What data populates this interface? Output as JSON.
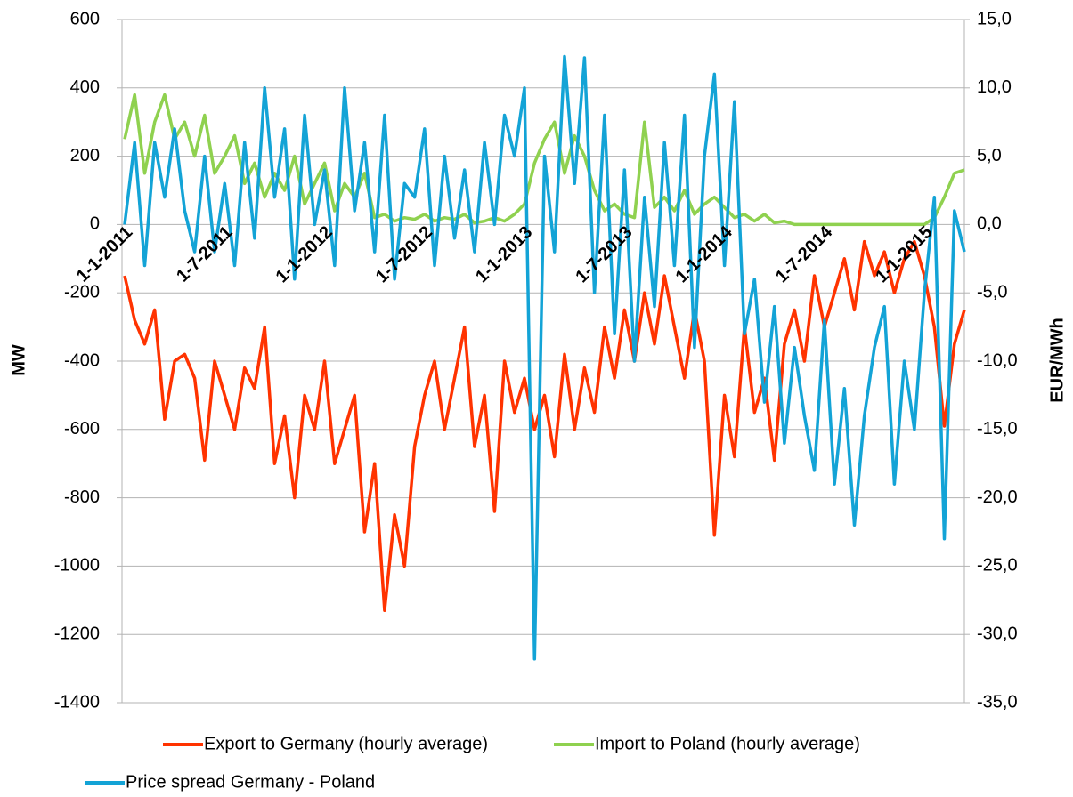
{
  "chart_data": {
    "type": "line",
    "categories": [
      "1-1-2011",
      null,
      null,
      null,
      null,
      null,
      null,
      null,
      null,
      null,
      "1-7-2011",
      null,
      null,
      null,
      null,
      null,
      null,
      null,
      null,
      null,
      "1-1-2012",
      null,
      null,
      null,
      null,
      null,
      null,
      null,
      null,
      null,
      "1-7-2012",
      null,
      null,
      null,
      null,
      null,
      null,
      null,
      null,
      null,
      "1-1-2013",
      null,
      null,
      null,
      null,
      null,
      null,
      null,
      null,
      null,
      "1-7-2013",
      null,
      null,
      null,
      null,
      null,
      null,
      null,
      null,
      null,
      "1-1-2014",
      null,
      null,
      null,
      null,
      null,
      null,
      null,
      null,
      null,
      "1-7-2014",
      null,
      null,
      null,
      null,
      null,
      null,
      null,
      null,
      null,
      "1-1-2015",
      null,
      null,
      null,
      null
    ],
    "series": [
      {
        "name": "Export to Germany (hourly average)",
        "color": "#ff3300",
        "values": [
          -150,
          -280,
          -350,
          -250,
          -570,
          -400,
          -380,
          -450,
          -690,
          -400,
          -500,
          -600,
          -420,
          -480,
          -300,
          -700,
          -560,
          -800,
          -500,
          -600,
          -400,
          -700,
          -600,
          -500,
          -900,
          -700,
          -1130,
          -850,
          -1000,
          -650,
          -500,
          -400,
          -600,
          -450,
          -300,
          -650,
          -500,
          -840,
          -400,
          -550,
          -450,
          -600,
          -500,
          -680,
          -380,
          -600,
          -420,
          -550,
          -300,
          -450,
          -250,
          -400,
          -200,
          -350,
          -150,
          -300,
          -450,
          -250,
          -400,
          -910,
          -500,
          -680,
          -300,
          -550,
          -450,
          -690,
          -350,
          -250,
          -400,
          -150,
          -300,
          -200,
          -100,
          -250,
          -50,
          -150,
          -80,
          -200,
          -100,
          -50,
          -150,
          -300,
          -590,
          -350,
          -250
        ]
      },
      {
        "name": "Import to Poland (hourly average)",
        "color": "#8fd14f",
        "values": [
          250,
          380,
          150,
          300,
          380,
          250,
          300,
          200,
          320,
          150,
          200,
          260,
          120,
          180,
          80,
          150,
          100,
          200,
          60,
          120,
          180,
          40,
          120,
          80,
          150,
          20,
          30,
          10,
          20,
          15,
          30,
          10,
          20,
          15,
          30,
          5,
          10,
          20,
          10,
          30,
          60,
          180,
          250,
          300,
          150,
          260,
          200,
          100,
          40,
          60,
          30,
          20,
          300,
          50,
          80,
          40,
          100,
          30,
          60,
          80,
          50,
          20,
          30,
          10,
          30,
          5,
          10,
          0,
          0,
          0,
          0,
          0,
          0,
          0,
          0,
          0,
          0,
          0,
          0,
          0,
          0,
          20,
          80,
          150,
          160
        ]
      },
      {
        "name": "Price spread Germany - Poland",
        "color": "#13a3d6",
        "axis": "y2",
        "values": [
          0,
          6,
          -3,
          6,
          2,
          7,
          1,
          -2,
          5,
          -2,
          3,
          -3,
          6,
          -1,
          10,
          2,
          7,
          -4,
          8,
          0,
          4,
          -3,
          10,
          1,
          6,
          -2,
          8,
          -4,
          3,
          2,
          7,
          -3,
          5,
          -1,
          4,
          -2,
          6,
          0,
          8,
          5,
          10,
          -31.8,
          5,
          -2,
          12.3,
          3,
          12.2,
          -5,
          8,
          -8,
          4,
          -10,
          2,
          -6,
          6,
          -3,
          8,
          -9,
          5,
          11,
          -3,
          9,
          -8,
          -4,
          -13,
          -6,
          -16,
          -9,
          -14,
          -18,
          -7,
          -19,
          -12,
          -22,
          -14,
          -9,
          -6,
          -19,
          -10,
          -15,
          -5,
          2,
          -23,
          1,
          -2
        ]
      }
    ],
    "ylabel": "MW",
    "y2label": "EUR/MWh",
    "ylim": [
      -1400,
      600
    ],
    "yticks": [
      -1400,
      -1200,
      -1000,
      -800,
      -600,
      -400,
      -200,
      0,
      200,
      400,
      600
    ],
    "y2lim": [
      -35,
      15
    ],
    "y2ticks": [
      {
        "value": -35,
        "label": "-35,0"
      },
      {
        "value": -30,
        "label": "-30,0"
      },
      {
        "value": -25,
        "label": "-25,0"
      },
      {
        "value": -20,
        "label": "-20,0"
      },
      {
        "value": -15,
        "label": "-15,0"
      },
      {
        "value": -10,
        "label": "-10,0"
      },
      {
        "value": -5,
        "label": "-5,0"
      },
      {
        "value": 0,
        "label": "0,0"
      },
      {
        "value": 5,
        "label": "5,0"
      },
      {
        "value": 10,
        "label": "10,0"
      },
      {
        "value": 15,
        "label": "15,0"
      }
    ],
    "grid": true,
    "legend": "bottom"
  }
}
